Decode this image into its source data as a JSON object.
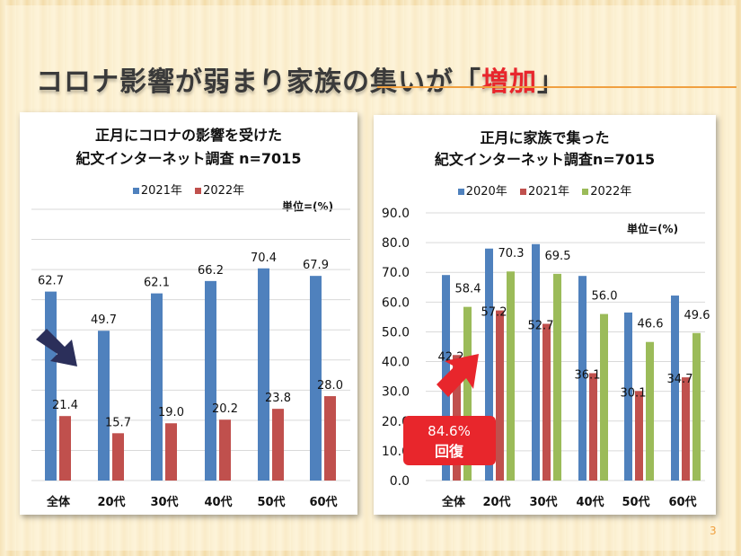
{
  "slide": {
    "title_prefix": "コロナ影響が弱まり家族の集いが「",
    "title_highlight": "増加",
    "title_suffix": "」",
    "page_number": "3"
  },
  "callout": {
    "line1": "84.6%",
    "line2": "回復"
  },
  "colors": {
    "blue": "#4f81bd",
    "red": "#c0504d",
    "green": "#9bbb59",
    "accent": "#e8262c"
  },
  "chart_data": [
    {
      "type": "bar",
      "title_line1": "正月にコロナの影響を受けた",
      "title_line2": "紀文インターネット調査  n=7015",
      "unit": "単位=(%)",
      "categories": [
        "全体",
        "20代",
        "30代",
        "40代",
        "50代",
        "60代"
      ],
      "series": [
        {
          "name": "2021年",
          "values": [
            62.7,
            49.7,
            62.1,
            66.2,
            70.4,
            67.9
          ]
        },
        {
          "name": "2022年",
          "values": [
            21.4,
            15.7,
            19.0,
            20.2,
            23.8,
            28.0
          ]
        }
      ],
      "ylim": [
        0,
        90
      ],
      "grid": true,
      "legend": "top"
    },
    {
      "type": "bar",
      "title_line1": "正月に家族で集った",
      "title_line2": "紀文インターネット調査n=7015",
      "unit": "単位=(%)",
      "categories": [
        "全体",
        "20代",
        "30代",
        "40代",
        "50代",
        "60代"
      ],
      "series": [
        {
          "name": "2020年",
          "values": [
            69.1,
            78.0,
            79.5,
            68.8,
            56.5,
            62.2
          ],
          "labeled": false
        },
        {
          "name": "2021年",
          "values": [
            42.2,
            57.2,
            52.7,
            36.1,
            30.1,
            34.7
          ],
          "labeled": true
        },
        {
          "name": "2022年",
          "values": [
            58.4,
            70.3,
            69.5,
            56.0,
            46.6,
            49.6
          ],
          "labeled": true
        }
      ],
      "yticks": [
        "0.0",
        "10.0",
        "20.0",
        "30.0",
        "40.0",
        "50.0",
        "60.0",
        "70.0",
        "80.0",
        "90.0"
      ],
      "ylim": [
        0,
        90
      ],
      "grid": true,
      "legend": "top"
    }
  ]
}
